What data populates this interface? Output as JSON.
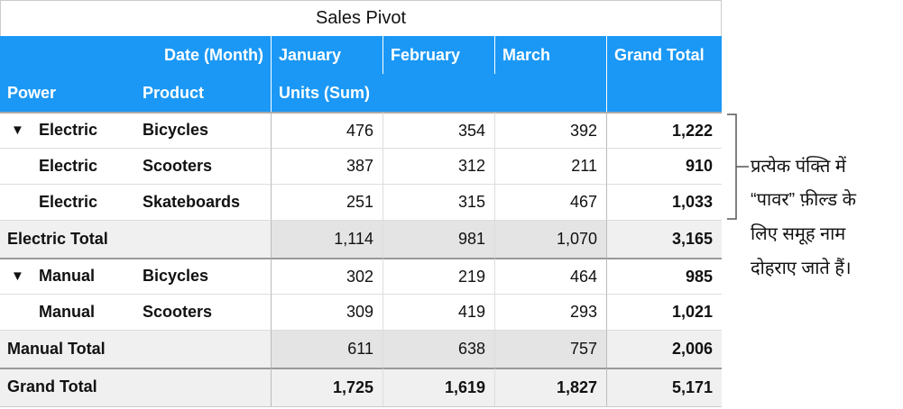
{
  "title": "Sales Pivot",
  "header": {
    "date_label": "Date (Month)",
    "months": [
      "January",
      "February",
      "March"
    ],
    "grand_total": "Grand Total",
    "power": "Power",
    "product": "Product",
    "units": "Units (Sum)"
  },
  "rows": [
    {
      "kind": "item",
      "power": "Electric",
      "product": "Bicycles",
      "values": [
        "476",
        "354",
        "392"
      ],
      "total": "1,222",
      "expand": true
    },
    {
      "kind": "item",
      "power": "Electric",
      "product": "Scooters",
      "values": [
        "387",
        "312",
        "211"
      ],
      "total": "910",
      "expand": false
    },
    {
      "kind": "item",
      "power": "Electric",
      "product": "Skateboards",
      "values": [
        "251",
        "315",
        "467"
      ],
      "total": "1,033",
      "expand": false
    },
    {
      "kind": "subtotal",
      "label": "Electric Total",
      "values": [
        "1,114",
        "981",
        "1,070"
      ],
      "total": "3,165"
    },
    {
      "kind": "item",
      "power": "Manual",
      "product": "Bicycles",
      "values": [
        "302",
        "219",
        "464"
      ],
      "total": "985",
      "expand": true
    },
    {
      "kind": "item",
      "power": "Manual",
      "product": "Scooters",
      "values": [
        "309",
        "419",
        "293"
      ],
      "total": "1,021",
      "expand": false
    },
    {
      "kind": "subtotal",
      "label": "Manual Total",
      "values": [
        "611",
        "638",
        "757"
      ],
      "total": "2,006"
    },
    {
      "kind": "grand",
      "label": "Grand Total",
      "values": [
        "1,725",
        "1,619",
        "1,827"
      ],
      "total": "5,171"
    }
  ],
  "annotation": [
    "प्रत्येक पंक्ति में",
    "“पावर” फ़ील्ड के",
    "लिए समूह नाम",
    "दोहराए जाते हैं।"
  ]
}
